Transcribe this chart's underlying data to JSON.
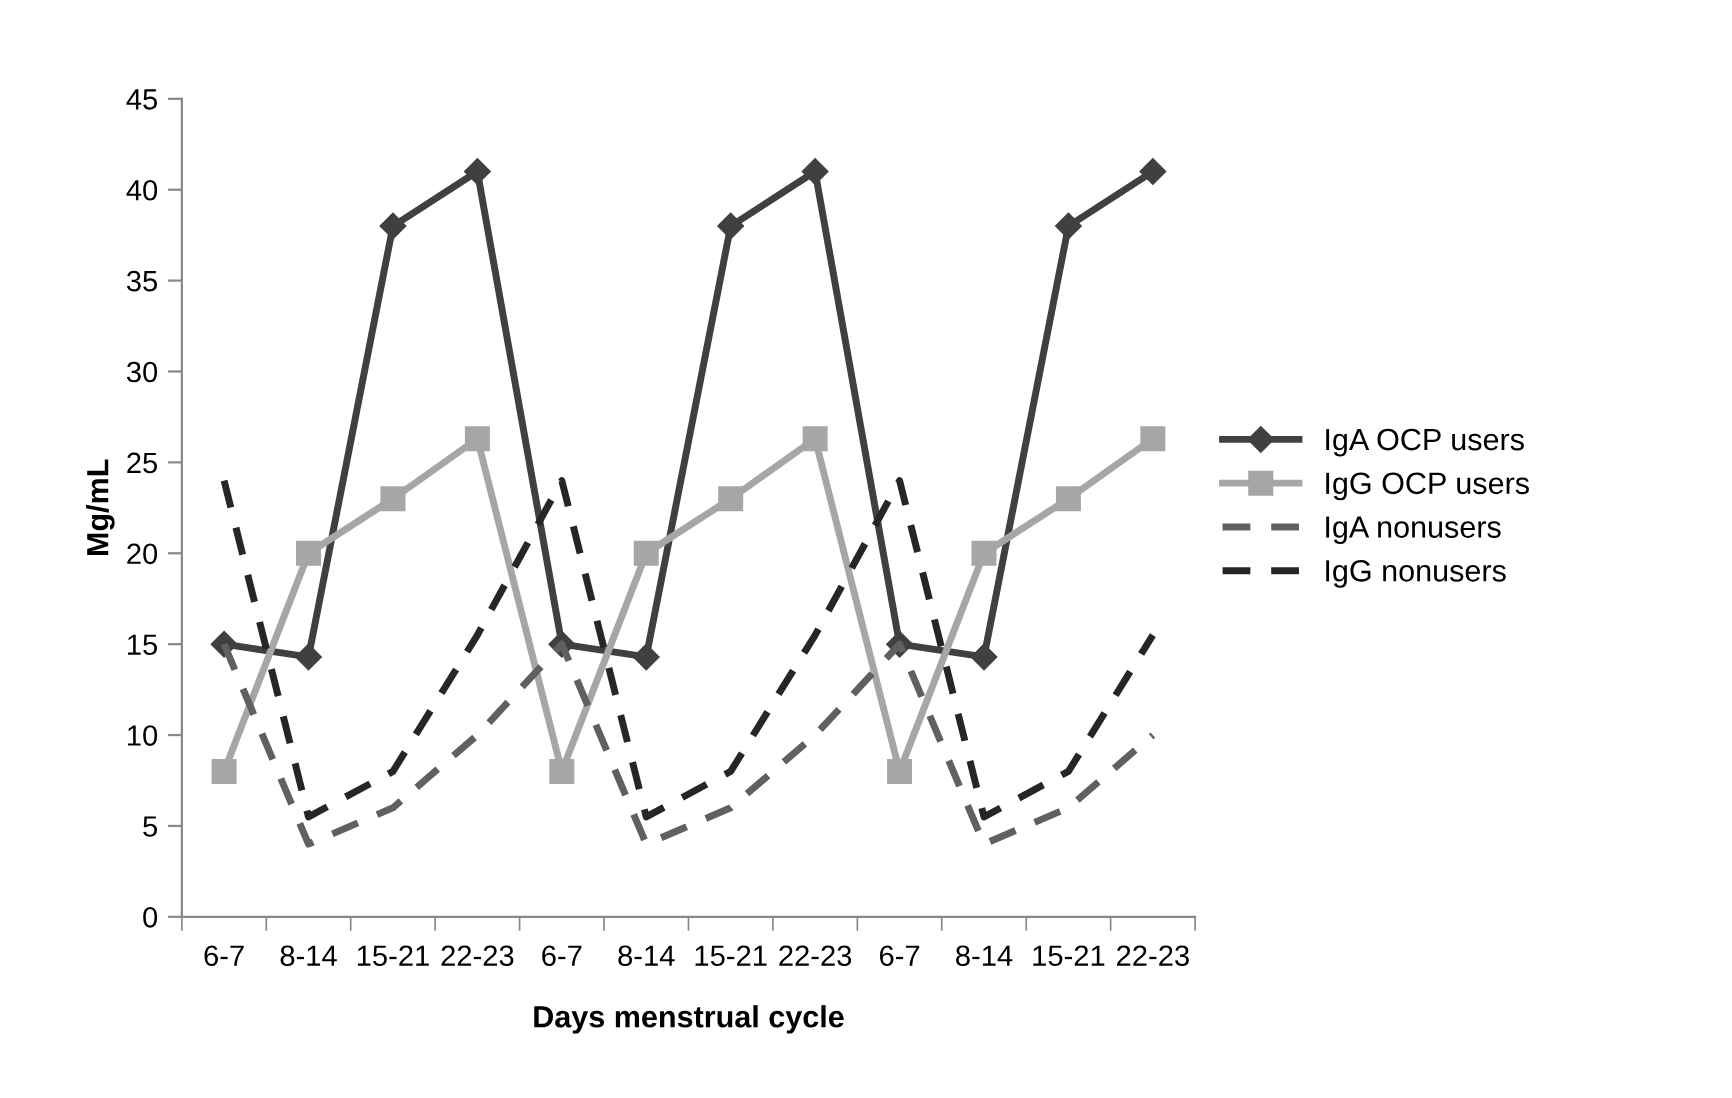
{
  "chart_data": {
    "type": "line",
    "xlabel": "Days menstrual cycle",
    "ylabel": "Mg/mL",
    "categories": [
      "6-7",
      "8-14",
      "15-21",
      "22-23",
      "6-7",
      "8-14",
      "15-21",
      "22-23",
      "6-7",
      "8-14",
      "15-21",
      "22-23"
    ],
    "series": [
      {
        "name": "IgA OCP users",
        "color": "#404040",
        "marker": "diamond",
        "line_style": "solid",
        "values": [
          15,
          14.3,
          38,
          41,
          15,
          14.3,
          38,
          41,
          15,
          14.3,
          38,
          41
        ]
      },
      {
        "name": "IgG OCP users",
        "color": "#a6a6a6",
        "marker": "square",
        "line_style": "solid",
        "values": [
          8,
          20,
          23,
          26.3,
          8,
          20,
          23,
          26.3,
          8,
          20,
          23,
          26.3
        ]
      },
      {
        "name": "IgA nonusers",
        "color": "#606060",
        "marker": "none",
        "line_style": "dashed",
        "values": [
          15,
          4,
          6,
          10,
          15,
          4,
          6,
          10,
          15,
          4,
          6,
          10
        ]
      },
      {
        "name": "IgG nonusers",
        "color": "#262626",
        "marker": "none",
        "line_style": "dashed",
        "values": [
          24,
          5.5,
          8,
          15.5,
          24,
          5.5,
          8,
          15.5,
          24,
          5.5,
          8,
          15.5
        ]
      }
    ],
    "ylim": [
      0,
      45
    ],
    "yticks": [
      0,
      5,
      10,
      15,
      20,
      25,
      30,
      35,
      40,
      45
    ],
    "grid": false,
    "legend": "right"
  }
}
